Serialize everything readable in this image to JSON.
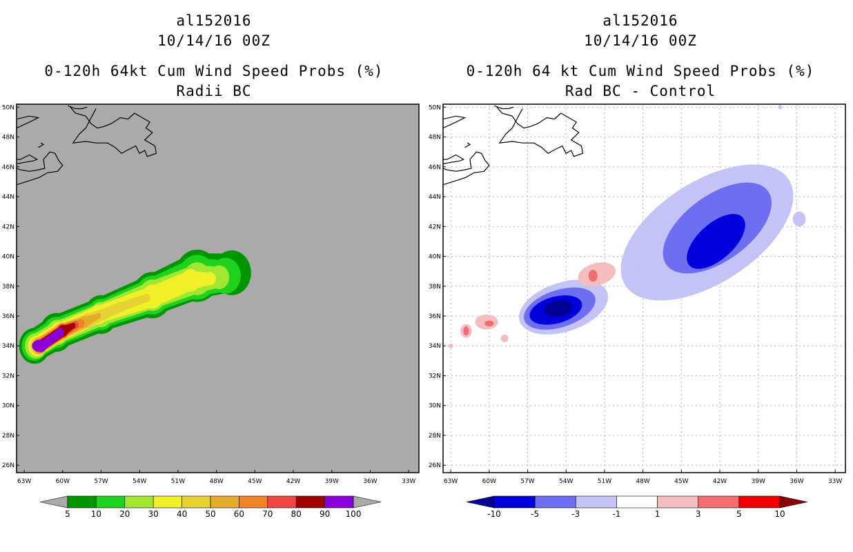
{
  "panels": [
    {
      "storm_id": "al152016",
      "datetime": "10/14/16 00Z",
      "title": "0-120h 64kt Cum Wind Speed Probs (%)",
      "subtitle": "Radii BC"
    },
    {
      "storm_id": "al152016",
      "datetime": "10/14/16 00Z",
      "title": "0-120h 64 kt Cum Wind Speed Probs (%)",
      "subtitle": "Rad BC - Control"
    }
  ],
  "colors": {
    "land_background": "#aaaaaa",
    "grid": "#b4b4b4",
    "coast": "#000000"
  },
  "chart_data": [
    {
      "type": "heatmap",
      "title": "0-120h 64kt Cum Wind Speed Probs (%)",
      "subtitle": "Radii BC",
      "x_ticks": [
        "63W",
        "60W",
        "57W",
        "54W",
        "51W",
        "48W",
        "45W",
        "42W",
        "39W",
        "36W",
        "33W"
      ],
      "x_values": [
        -63,
        -60,
        -57,
        -54,
        -51,
        -48,
        -45,
        -42,
        -39,
        -36,
        -33
      ],
      "y_ticks": [
        "26N",
        "28N",
        "30N",
        "32N",
        "34N",
        "36N",
        "38N",
        "40N",
        "42N",
        "44N",
        "46N",
        "48N",
        "50N"
      ],
      "y_values": [
        26,
        28,
        30,
        32,
        34,
        36,
        38,
        40,
        42,
        44,
        46,
        48,
        50
      ],
      "xlim": [
        -63.6,
        -32.2
      ],
      "ylim": [
        25.5,
        50.2
      ],
      "grid": false,
      "colorbar": {
        "labels": [
          "5",
          "10",
          "20",
          "30",
          "40",
          "50",
          "60",
          "70",
          "80",
          "90",
          "100"
        ],
        "colors": [
          "#009600",
          "#1ed21e",
          "#a0e632",
          "#f0f028",
          "#e6d232",
          "#e6aa2d",
          "#f08228",
          "#f04646",
          "#a00000",
          "#8c00dc"
        ],
        "extend_color": "#aaaaaa"
      },
      "contours": [
        {
          "level": 5,
          "color": "#009600",
          "shape": "swath",
          "ctrl": [
            [
              -62.2,
              34.0,
              1.2
            ],
            [
              -60.5,
              34.9,
              1.3
            ],
            [
              -57.0,
              36.1,
              1.3
            ],
            [
              -53.0,
              37.4,
              1.55
            ],
            [
              -49.5,
              38.7,
              1.75
            ],
            [
              -46.8,
              38.9,
              1.5
            ]
          ]
        },
        {
          "level": 10,
          "color": "#1ed21e",
          "shape": "swath",
          "ctrl": [
            [
              -62.2,
              34.0,
              1.0
            ],
            [
              -60.5,
              34.9,
              1.05
            ],
            [
              -57.0,
              36.1,
              1.05
            ],
            [
              -53.0,
              37.4,
              1.3
            ],
            [
              -49.5,
              38.6,
              1.5
            ],
            [
              -47.3,
              38.7,
              1.2
            ]
          ]
        },
        {
          "level": 20,
          "color": "#a0e632",
          "shape": "swath",
          "ctrl": [
            [
              -62.1,
              34.0,
              0.85
            ],
            [
              -60.4,
              34.9,
              0.85
            ],
            [
              -57.0,
              36.1,
              0.85
            ],
            [
              -53.0,
              37.4,
              1.05
            ],
            [
              -49.5,
              38.5,
              1.1
            ],
            [
              -47.8,
              38.6,
              0.8
            ]
          ]
        },
        {
          "level": 30,
          "color": "#f0f028",
          "shape": "swath",
          "ctrl": [
            [
              -62.0,
              34.0,
              0.7
            ],
            [
              -60.3,
              34.9,
              0.7
            ],
            [
              -57.2,
              36.1,
              0.65
            ],
            [
              -53.0,
              37.3,
              0.8
            ],
            [
              -50.0,
              38.4,
              0.75
            ],
            [
              -48.5,
              38.5,
              0.45
            ]
          ]
        },
        {
          "level": 40,
          "color": "#e6d232",
          "shape": "swath",
          "ctrl": [
            [
              -61.9,
              34.0,
              0.6
            ],
            [
              -60.2,
              34.9,
              0.6
            ],
            [
              -58.0,
              35.7,
              0.5
            ],
            [
              -55.5,
              36.6,
              0.35
            ],
            [
              -53.5,
              37.2,
              0.3
            ]
          ]
        },
        {
          "level": 50,
          "color": "#e6aa2d",
          "shape": "swath",
          "ctrl": [
            [
              -61.8,
              34.0,
              0.55
            ],
            [
              -60.0,
              35.0,
              0.55
            ],
            [
              -58.3,
              35.6,
              0.4
            ],
            [
              -57.2,
              36.0,
              0.2
            ]
          ]
        },
        {
          "level": 60,
          "color": "#f08228",
          "shape": "swath",
          "ctrl": [
            [
              -61.8,
              34.0,
              0.5
            ],
            [
              -60.0,
              35.0,
              0.5
            ],
            [
              -58.6,
              35.5,
              0.3
            ]
          ]
        },
        {
          "level": 70,
          "color": "#f04646",
          "shape": "swath",
          "ctrl": [
            [
              -61.7,
              34.0,
              0.45
            ],
            [
              -60.0,
              35.0,
              0.45
            ],
            [
              -59.0,
              35.4,
              0.25
            ]
          ]
        },
        {
          "level": 80,
          "color": "#a00000",
          "shape": "swath",
          "ctrl": [
            [
              -61.7,
              34.0,
              0.4
            ],
            [
              -60.0,
              35.0,
              0.4
            ],
            [
              -59.2,
              35.35,
              0.2
            ]
          ]
        },
        {
          "level": 90,
          "color": "#8c00dc",
          "shape": "swath",
          "ctrl": [
            [
              -61.6,
              34.0,
              0.35
            ],
            [
              -60.2,
              34.9,
              0.3
            ]
          ]
        },
        {
          "level": 90,
          "color": "#8c00dc",
          "shape": "ellipse",
          "cx": -61.8,
          "cy": 34.0,
          "rx": 0.6,
          "ry": 0.4,
          "rot": 0
        }
      ]
    },
    {
      "type": "heatmap",
      "title": "0-120h 64 kt Cum Wind Speed Probs (%)",
      "subtitle": "Rad BC - Control",
      "x_ticks": [
        "63W",
        "60W",
        "57W",
        "54W",
        "51W",
        "48W",
        "45W",
        "42W",
        "39W",
        "36W",
        "33W"
      ],
      "x_values": [
        -63,
        -60,
        -57,
        -54,
        -51,
        -48,
        -45,
        -42,
        -39,
        -36,
        -33
      ],
      "y_ticks": [
        "26N",
        "28N",
        "30N",
        "32N",
        "34N",
        "36N",
        "38N",
        "40N",
        "42N",
        "44N",
        "46N",
        "48N",
        "50N"
      ],
      "y_values": [
        26,
        28,
        30,
        32,
        34,
        36,
        38,
        40,
        42,
        44,
        46,
        48,
        50
      ],
      "xlim": [
        -63.6,
        -32.2
      ],
      "ylim": [
        25.5,
        50.2
      ],
      "grid": true,
      "colorbar": {
        "labels": [
          "-10",
          "-5",
          "-3",
          "-1",
          "1",
          "3",
          "5",
          "10"
        ],
        "colors": [
          "#0000dc",
          "#6e6ef0",
          "#c3c3f5",
          "#ffffff",
          "#f5bebe",
          "#f06e6e",
          "#f00000"
        ],
        "low_extend_color": "#000096",
        "high_extend_color": "#8c0000"
      },
      "contours": [
        {
          "level": -1,
          "color": "#c3c3f5",
          "shape": "ellipse",
          "cx": -43.0,
          "cy": 41.6,
          "rx": 7.6,
          "ry": 3.4,
          "rot": -33
        },
        {
          "level": -3,
          "color": "#6e6ef0",
          "shape": "ellipse",
          "cx": -42.2,
          "cy": 41.9,
          "rx": 4.9,
          "ry": 2.2,
          "rot": -36
        },
        {
          "level": -5,
          "color": "#0000dc",
          "shape": "ellipse",
          "cx": -42.3,
          "cy": 41.0,
          "rx": 2.8,
          "ry": 1.2,
          "rot": -42
        },
        {
          "level": -1,
          "color": "#c3c3f5",
          "shape": "ellipse",
          "cx": -54.2,
          "cy": 36.6,
          "rx": 3.6,
          "ry": 1.65,
          "rot": -18
        },
        {
          "level": -3,
          "color": "#6e6ef0",
          "shape": "ellipse",
          "cx": -54.5,
          "cy": 36.5,
          "rx": 2.9,
          "ry": 1.25,
          "rot": -18
        },
        {
          "level": -5,
          "color": "#0000dc",
          "shape": "ellipse",
          "cx": -54.8,
          "cy": 36.4,
          "rx": 2.1,
          "ry": 0.9,
          "rot": -15
        },
        {
          "level": -10,
          "color": "#000096",
          "shape": "ellipse",
          "cx": -54.6,
          "cy": 36.5,
          "rx": 1.1,
          "ry": 0.55,
          "rot": -10
        },
        {
          "level": 1,
          "color": "#f5bebe",
          "shape": "ellipse",
          "cx": -51.6,
          "cy": 38.8,
          "rx": 1.5,
          "ry": 0.75,
          "rot": -15
        },
        {
          "level": 3,
          "color": "#f06e6e",
          "shape": "ellipse",
          "cx": -51.9,
          "cy": 38.7,
          "rx": 0.35,
          "ry": 0.4,
          "rot": 0
        },
        {
          "level": 1,
          "color": "#f5bebe",
          "shape": "ellipse",
          "cx": -60.2,
          "cy": 35.6,
          "rx": 0.9,
          "ry": 0.5,
          "rot": 0
        },
        {
          "level": 3,
          "color": "#f06e6e",
          "shape": "ellipse",
          "cx": -60.0,
          "cy": 35.5,
          "rx": 0.35,
          "ry": 0.2,
          "rot": 0
        },
        {
          "level": 1,
          "color": "#f5bebe",
          "shape": "ellipse",
          "cx": -61.8,
          "cy": 35.0,
          "rx": 0.45,
          "ry": 0.45,
          "rot": 0
        },
        {
          "level": 3,
          "color": "#f06e6e",
          "shape": "ellipse",
          "cx": -61.8,
          "cy": 35.0,
          "rx": 0.22,
          "ry": 0.3,
          "rot": 0
        },
        {
          "level": 1,
          "color": "#f5bebe",
          "shape": "ellipse",
          "cx": -58.8,
          "cy": 34.5,
          "rx": 0.3,
          "ry": 0.25,
          "rot": 0
        },
        {
          "level": 1,
          "color": "#f5bebe",
          "shape": "ellipse",
          "cx": -63.0,
          "cy": 34.0,
          "rx": 0.2,
          "ry": 0.15,
          "rot": 0
        },
        {
          "level": -1,
          "color": "#c3c3f5",
          "shape": "ellipse",
          "cx": -48.2,
          "cy": 39.0,
          "rx": 0.25,
          "ry": 0.3,
          "rot": 0
        },
        {
          "level": -1,
          "color": "#c3c3f5",
          "shape": "ellipse",
          "cx": -35.8,
          "cy": 42.5,
          "rx": 0.5,
          "ry": 0.5,
          "rot": 0
        },
        {
          "level": -1,
          "color": "#c3c3f5",
          "shape": "ellipse",
          "cx": -37.3,
          "cy": 50.0,
          "rx": 0.15,
          "ry": 0.15,
          "rot": 0
        }
      ]
    }
  ]
}
